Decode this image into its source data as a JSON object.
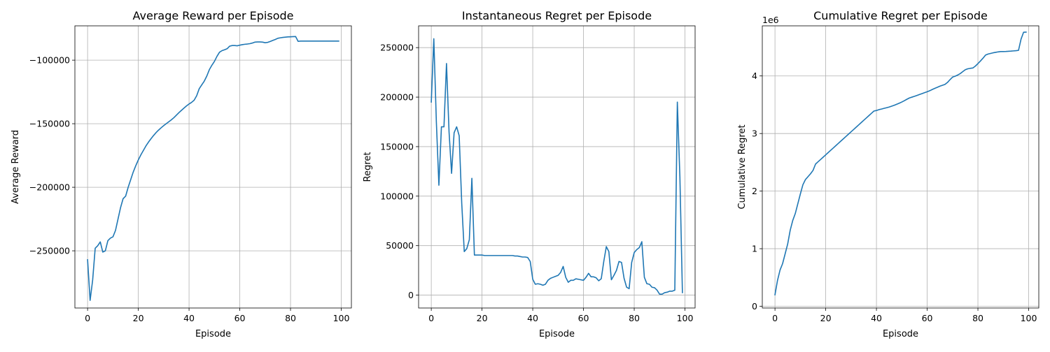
{
  "chart_data": [
    {
      "type": "line",
      "title": "Average Reward per Episode",
      "xlabel": "Episode",
      "ylabel": "Average Reward",
      "xlim": [
        -5,
        104
      ],
      "ylim": [
        -295000,
        -73000
      ],
      "xticks": [
        0,
        20,
        40,
        60,
        80,
        100
      ],
      "xtick_labels": [
        "0",
        "20",
        "40",
        "60",
        "80",
        "100"
      ],
      "yticks": [
        -250000,
        -200000,
        -150000,
        -100000
      ],
      "ytick_labels": [
        "−250000",
        "−200000",
        "−150000",
        "−100000"
      ],
      "offset_label": "",
      "grid": true,
      "color": "#1f77b4",
      "series": [
        {
          "x": [
            0,
            1,
            2,
            3,
            4,
            5,
            6,
            7,
            8,
            9,
            10,
            11,
            12,
            13,
            14,
            15,
            16,
            17,
            18,
            19,
            20,
            21,
            22,
            23,
            24,
            25,
            26,
            27,
            28,
            29,
            30,
            31,
            32,
            33,
            34,
            35,
            36,
            37,
            38,
            39,
            40,
            41,
            42,
            43,
            44,
            45,
            46,
            47,
            48,
            49,
            50,
            51,
            52,
            53,
            54,
            55,
            56,
            57,
            58,
            59,
            60,
            61,
            62,
            63,
            64,
            65,
            66,
            67,
            68,
            69,
            70,
            71,
            72,
            73,
            74,
            75,
            76,
            77,
            78,
            79,
            80,
            81,
            82,
            83,
            84,
            85,
            86,
            87,
            88,
            89,
            90,
            91,
            92,
            93,
            94,
            95,
            96,
            97,
            98,
            99
          ],
          "y": [
            -257000,
            -289000,
            -273000,
            -248000,
            -246000,
            -243000,
            -251000,
            -250000,
            -242000,
            -240000,
            -239000,
            -234000,
            -225000,
            -216000,
            -209000,
            -207000,
            -200000,
            -194000,
            -188000,
            -183000,
            -178500,
            -174500,
            -171000,
            -167500,
            -164500,
            -161800,
            -159300,
            -157000,
            -155000,
            -153200,
            -151500,
            -150000,
            -148500,
            -147000,
            -145300,
            -143300,
            -141300,
            -139500,
            -137700,
            -136000,
            -134500,
            -133200,
            -131500,
            -128000,
            -122500,
            -119500,
            -116500,
            -112500,
            -107500,
            -104000,
            -101000,
            -97000,
            -93800,
            -92500,
            -91800,
            -91000,
            -89000,
            -88500,
            -88500,
            -88700,
            -88200,
            -87800,
            -87500,
            -87300,
            -87000,
            -86500,
            -85800,
            -85700,
            -85700,
            -85800,
            -86300,
            -86000,
            -85300,
            -84500,
            -83700,
            -82800,
            -82400,
            -82100,
            -81900,
            -81700,
            -81600,
            -81500,
            -81400,
            -85200,
            -85000,
            -85000,
            -85000,
            -85000,
            -85000,
            -85000,
            -85000,
            -85000,
            -85000,
            -85000,
            -85000,
            -85000,
            -85000,
            -85000,
            -85000,
            -85000
          ]
        }
      ]
    },
    {
      "type": "line",
      "title": "Instantaneous Regret per Episode",
      "xlabel": "Episode",
      "ylabel": "Regret",
      "xlim": [
        -5,
        104
      ],
      "ylim": [
        -13000,
        272000
      ],
      "xticks": [
        0,
        20,
        40,
        60,
        80,
        100
      ],
      "xtick_labels": [
        "0",
        "20",
        "40",
        "60",
        "80",
        "100"
      ],
      "yticks": [
        0,
        50000,
        100000,
        150000,
        200000,
        250000
      ],
      "ytick_labels": [
        "0",
        "50000",
        "100000",
        "150000",
        "200000",
        "250000"
      ],
      "offset_label": "",
      "grid": true,
      "color": "#1f77b4",
      "series": [
        {
          "x": [
            0,
            1,
            2,
            3,
            4,
            5,
            6,
            7,
            8,
            9,
            10,
            11,
            12,
            13,
            14,
            15,
            16,
            17,
            18,
            19,
            20,
            21,
            22,
            23,
            24,
            25,
            26,
            27,
            28,
            29,
            30,
            31,
            32,
            33,
            34,
            35,
            36,
            37,
            38,
            39,
            40,
            41,
            42,
            43,
            44,
            45,
            46,
            47,
            48,
            49,
            50,
            51,
            52,
            53,
            54,
            55,
            56,
            57,
            58,
            59,
            60,
            61,
            62,
            63,
            64,
            65,
            66,
            67,
            68,
            69,
            70,
            71,
            72,
            73,
            74,
            75,
            76,
            77,
            78,
            79,
            80,
            81,
            82,
            83,
            84,
            85,
            86,
            87,
            88,
            89,
            90,
            91,
            92,
            93,
            94,
            95,
            96,
            97,
            98,
            99
          ],
          "y": [
            195000,
            259000,
            175000,
            111000,
            170000,
            170000,
            234000,
            165000,
            123000,
            164000,
            170000,
            161000,
            93000,
            44000,
            47000,
            56000,
            118000,
            40500,
            40500,
            40500,
            40500,
            40000,
            40000,
            40000,
            40000,
            40000,
            40000,
            40000,
            40000,
            40000,
            40000,
            40000,
            40000,
            39500,
            39500,
            39000,
            38500,
            38500,
            38000,
            34000,
            16000,
            11000,
            11500,
            11000,
            10000,
            11000,
            15000,
            17000,
            18000,
            19000,
            20000,
            23000,
            29000,
            18000,
            13000,
            15000,
            15000,
            16500,
            16000,
            15500,
            15000,
            18000,
            22000,
            18500,
            18500,
            17500,
            14500,
            16500,
            34000,
            49000,
            44000,
            15500,
            20000,
            25000,
            34000,
            33000,
            17000,
            8000,
            6500,
            33000,
            43000,
            46000,
            48000,
            54000,
            18000,
            11500,
            11000,
            8000,
            7500,
            5000,
            1000,
            1000,
            2500,
            3000,
            4000,
            4000,
            5000,
            195000,
            120000,
            2500
          ]
        }
      ]
    },
    {
      "type": "line",
      "title": "Cumulative Regret per Episode",
      "xlabel": "Episode",
      "ylabel": "Cumulative Regret",
      "xlim": [
        -5,
        104
      ],
      "ylim": [
        -30000,
        4870000
      ],
      "xticks": [
        0,
        20,
        40,
        60,
        80,
        100
      ],
      "xtick_labels": [
        "0",
        "20",
        "40",
        "60",
        "80",
        "100"
      ],
      "yticks": [
        0,
        1000000,
        2000000,
        3000000,
        4000000
      ],
      "ytick_labels": [
        "0",
        "1",
        "2",
        "3",
        "4"
      ],
      "offset_label": "1e6",
      "grid": true,
      "color": "#1f77b4",
      "series": [
        {
          "x": [
            0,
            1,
            2,
            3,
            4,
            5,
            6,
            7,
            8,
            9,
            10,
            11,
            12,
            13,
            14,
            15,
            16,
            17,
            18,
            19,
            20,
            21,
            22,
            23,
            24,
            25,
            26,
            27,
            28,
            29,
            30,
            31,
            32,
            33,
            34,
            35,
            36,
            37,
            38,
            39,
            40,
            41,
            42,
            43,
            44,
            45,
            46,
            47,
            48,
            49,
            50,
            51,
            52,
            53,
            54,
            55,
            56,
            57,
            58,
            59,
            60,
            61,
            62,
            63,
            64,
            65,
            66,
            67,
            68,
            69,
            70,
            71,
            72,
            73,
            74,
            75,
            76,
            77,
            78,
            79,
            80,
            81,
            82,
            83,
            84,
            85,
            86,
            87,
            88,
            89,
            90,
            91,
            92,
            93,
            94,
            95,
            96,
            97,
            98,
            99
          ],
          "y": [
            200000,
            450000,
            630000,
            740000,
            910000,
            1080000,
            1320000,
            1490000,
            1610000,
            1780000,
            1950000,
            2110000,
            2200000,
            2250000,
            2300000,
            2360000,
            2470000,
            2510000,
            2550000,
            2590000,
            2630000,
            2670000,
            2710000,
            2750000,
            2790000,
            2830000,
            2870000,
            2910000,
            2950000,
            2990000,
            3030000,
            3070000,
            3110000,
            3150000,
            3190000,
            3230000,
            3270000,
            3310000,
            3350000,
            3390000,
            3400000,
            3415000,
            3425000,
            3437000,
            3448000,
            3460000,
            3475000,
            3490000,
            3508000,
            3527000,
            3547000,
            3570000,
            3595000,
            3618000,
            3632000,
            3646000,
            3662000,
            3678000,
            3694000,
            3710000,
            3725000,
            3743000,
            3765000,
            3785000,
            3803000,
            3822000,
            3837000,
            3853000,
            3887000,
            3936000,
            3980000,
            3995000,
            4015000,
            4040000,
            4074000,
            4107000,
            4124000,
            4132000,
            4138000,
            4171000,
            4214000,
            4260000,
            4308000,
            4362000,
            4380000,
            4391000,
            4402000,
            4410000,
            4418000,
            4423000,
            4424000,
            4425000,
            4428000,
            4431000,
            4435000,
            4439000,
            4444000,
            4639000,
            4759000,
            4761000
          ]
        }
      ]
    }
  ]
}
